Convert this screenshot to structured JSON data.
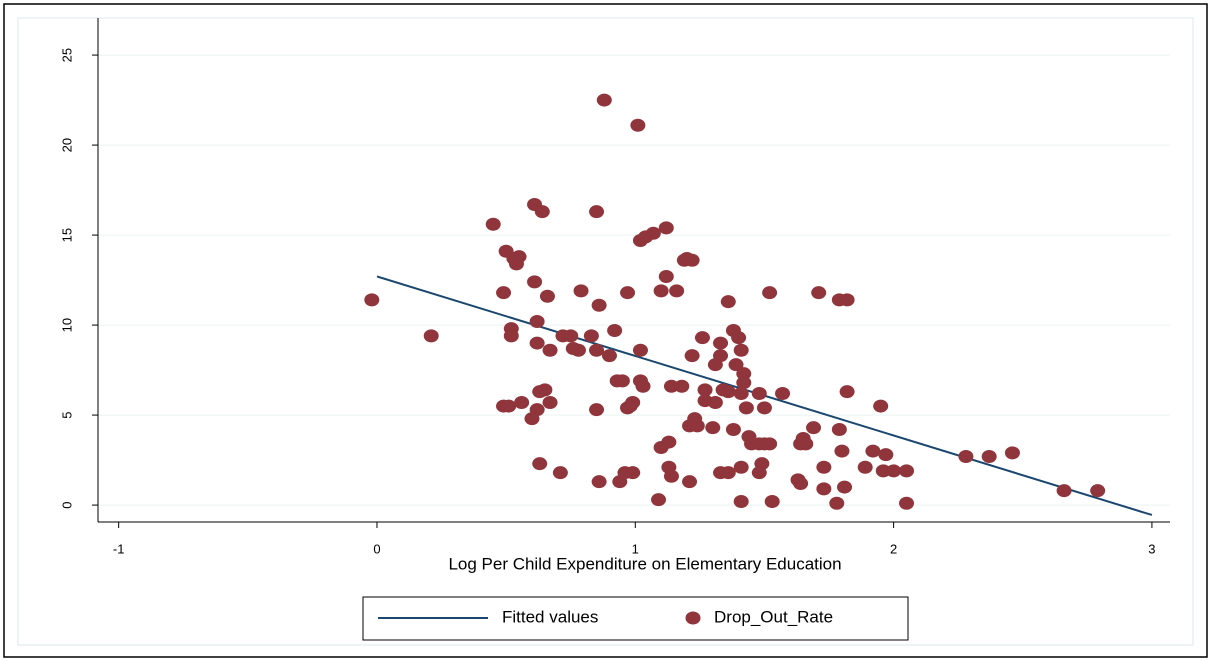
{
  "chart_data": {
    "type": "scatter",
    "x_label": "Log Per Child Expenditure on Elementary Education",
    "xlim": [
      -1.08,
      3.07
    ],
    "xticks": [
      -1,
      0,
      1,
      2,
      3
    ],
    "ylim": [
      -0.94,
      27.06
    ],
    "yticks": [
      0,
      5,
      10,
      15,
      20,
      25
    ],
    "grid": true,
    "legend": "bottom",
    "series": [
      {
        "name": "Fitted values",
        "color": "#1a476f",
        "kind": "line",
        "x": [
          0,
          3.0
        ],
        "values": [
          12.7,
          -0.55
        ]
      },
      {
        "name": "Drop_Out_Rate",
        "color": "#90353b",
        "kind": "points",
        "x": [
          -0.02,
          0.21,
          0.45,
          0.49,
          0.5,
          0.53,
          0.55,
          0.54,
          0.52,
          0.52,
          0.49,
          0.51,
          0.56,
          0.61,
          0.61,
          0.64,
          0.62,
          0.62,
          0.66,
          0.67,
          0.65,
          0.63,
          0.67,
          0.62,
          0.6,
          0.63,
          0.71,
          0.72,
          0.75,
          0.76,
          0.78,
          0.79,
          0.83,
          0.85,
          0.85,
          0.86,
          0.85,
          0.86,
          0.88,
          0.9,
          0.92,
          0.93,
          0.95,
          0.97,
          0.97,
          0.99,
          0.98,
          0.94,
          0.96,
          0.99,
          1.01,
          1.02,
          1.03,
          1.02,
          1.02,
          1.04,
          1.07,
          1.12,
          1.09,
          1.1,
          1.13,
          1.12,
          1.1,
          1.14,
          1.13,
          1.14,
          1.16,
          1.19,
          1.2,
          1.22,
          1.18,
          1.21,
          1.22,
          1.21,
          1.23,
          1.24,
          1.26,
          1.27,
          1.27,
          1.3,
          1.31,
          1.31,
          1.33,
          1.33,
          1.33,
          1.36,
          1.34,
          1.36,
          1.38,
          1.36,
          1.38,
          1.39,
          1.4,
          1.41,
          1.42,
          1.42,
          1.41,
          1.43,
          1.41,
          1.41,
          1.44,
          1.45,
          1.48,
          1.48,
          1.49,
          1.48,
          1.5,
          1.5,
          1.52,
          1.53,
          1.52,
          1.57,
          1.64,
          1.65,
          1.66,
          1.63,
          1.64,
          1.69,
          1.71,
          1.73,
          1.73,
          1.79,
          1.82,
          1.79,
          1.8,
          1.81,
          1.78,
          1.82,
          1.89,
          1.92,
          1.95,
          1.96,
          1.97,
          2.0,
          2.05,
          2.05,
          2.28,
          2.37,
          2.46,
          2.66,
          2.79
        ],
        "values": [
          11.4,
          9.4,
          15.6,
          11.8,
          14.1,
          13.7,
          13.8,
          13.4,
          9.8,
          9.4,
          5.5,
          5.5,
          5.7,
          12.4,
          16.7,
          16.3,
          10.2,
          9.0,
          11.6,
          8.6,
          6.4,
          6.3,
          5.7,
          5.3,
          4.8,
          2.3,
          1.8,
          9.4,
          9.4,
          8.7,
          8.6,
          11.9,
          9.4,
          8.6,
          16.3,
          11.1,
          5.3,
          1.3,
          22.5,
          8.3,
          9.7,
          6.9,
          6.9,
          5.4,
          11.8,
          5.7,
          5.5,
          1.3,
          1.8,
          1.8,
          21.1,
          6.9,
          6.6,
          8.6,
          14.7,
          14.9,
          15.1,
          15.4,
          0.3,
          3.2,
          3.5,
          12.7,
          11.9,
          6.6,
          2.1,
          1.6,
          11.9,
          13.6,
          13.7,
          13.6,
          6.6,
          1.3,
          8.3,
          4.4,
          4.8,
          4.4,
          9.3,
          5.8,
          6.4,
          4.3,
          5.7,
          7.8,
          9.0,
          8.3,
          1.8,
          1.8,
          6.4,
          6.3,
          4.2,
          11.3,
          9.7,
          7.8,
          9.3,
          8.6,
          7.3,
          6.8,
          6.2,
          5.4,
          2.1,
          0.2,
          3.8,
          3.4,
          6.2,
          3.4,
          2.3,
          1.8,
          5.4,
          3.4,
          3.4,
          0.2,
          11.8,
          6.2,
          3.4,
          3.7,
          3.4,
          1.4,
          1.2,
          4.3,
          11.8,
          2.1,
          0.9,
          11.4,
          11.4,
          4.2,
          3.0,
          1.0,
          0.1,
          6.3,
          2.1,
          3.0,
          5.5,
          1.9,
          2.8,
          1.9,
          1.9,
          0.1,
          2.7,
          2.7,
          2.9,
          0.8,
          0.8
        ]
      }
    ]
  }
}
